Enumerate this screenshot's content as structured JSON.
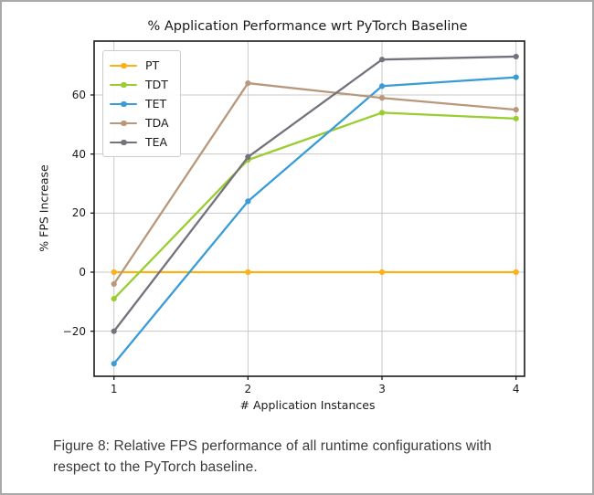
{
  "chart_data": {
    "type": "line",
    "title": "% Application Performance wrt PyTorch Baseline",
    "xlabel": "# Application Instances",
    "ylabel": "% FPS Increase",
    "x": [
      1,
      2,
      3,
      4
    ],
    "series": [
      {
        "name": "PT",
        "color": "#FBB117",
        "values": [
          0,
          0,
          0,
          0
        ]
      },
      {
        "name": "TDT",
        "color": "#9ACD32",
        "values": [
          -9,
          38,
          54,
          52
        ]
      },
      {
        "name": "TET",
        "color": "#3A9CD6",
        "values": [
          -31,
          24,
          63,
          66
        ]
      },
      {
        "name": "TDA",
        "color": "#B9977B",
        "values": [
          -4,
          64,
          59,
          55
        ]
      },
      {
        "name": "TEA",
        "color": "#73737D",
        "values": [
          -20,
          39,
          72,
          73
        ]
      }
    ],
    "xticks": [
      1,
      2,
      3,
      4
    ],
    "yticks": [
      -20,
      0,
      20,
      40,
      60
    ],
    "ylim": [
      -35,
      78
    ],
    "grid": true,
    "legend_position": "upper left",
    "grid_color": "#c8c8c8",
    "spine_color": "#1a1a1a"
  },
  "caption": {
    "line1": "Figure 8: Relative FPS performance of all runtime configurations with",
    "line2": "respect to the PyTorch baseline."
  }
}
